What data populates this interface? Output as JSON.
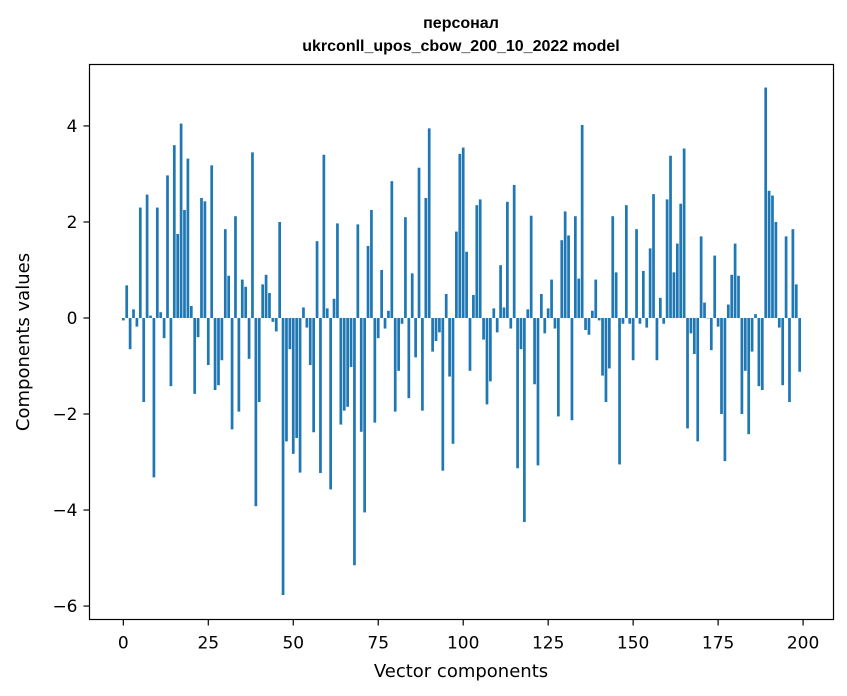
{
  "chart_data": {
    "type": "bar",
    "title": "персонал",
    "subtitle": "ukrconll_upos_cbow_200_10_2022 model",
    "xlabel": "Vector components",
    "ylabel": "Components values",
    "xlim": [
      -9.95,
      208.95
    ],
    "ylim": [
      -6.28,
      5.28
    ],
    "xticks": [
      0,
      25,
      50,
      75,
      100,
      125,
      150,
      175,
      200
    ],
    "yticks": [
      -6,
      -4,
      -2,
      0,
      2,
      4
    ],
    "xtick_labels": [
      "0",
      "25",
      "50",
      "75",
      "100",
      "125",
      "150",
      "175",
      "200"
    ],
    "ytick_labels": [
      "−6",
      "−4",
      "−2",
      "0",
      "2",
      "4"
    ],
    "bar_color": "#1f77b4",
    "grid": false,
    "x": [
      0,
      1,
      2,
      3,
      4,
      5,
      6,
      7,
      8,
      9,
      10,
      11,
      12,
      13,
      14,
      15,
      16,
      17,
      18,
      19,
      20,
      21,
      22,
      23,
      24,
      25,
      26,
      27,
      28,
      29,
      30,
      31,
      32,
      33,
      34,
      35,
      36,
      37,
      38,
      39,
      40,
      41,
      42,
      43,
      44,
      45,
      46,
      47,
      48,
      49,
      50,
      51,
      52,
      53,
      54,
      55,
      56,
      57,
      58,
      59,
      60,
      61,
      62,
      63,
      64,
      65,
      66,
      67,
      68,
      69,
      70,
      71,
      72,
      73,
      74,
      75,
      76,
      77,
      78,
      79,
      80,
      81,
      82,
      83,
      84,
      85,
      86,
      87,
      88,
      89,
      90,
      91,
      92,
      93,
      94,
      95,
      96,
      97,
      98,
      99,
      100,
      101,
      102,
      103,
      104,
      105,
      106,
      107,
      108,
      109,
      110,
      111,
      112,
      113,
      114,
      115,
      116,
      117,
      118,
      119,
      120,
      121,
      122,
      123,
      124,
      125,
      126,
      127,
      128,
      129,
      130,
      131,
      132,
      133,
      134,
      135,
      136,
      137,
      138,
      139,
      140,
      141,
      142,
      143,
      144,
      145,
      146,
      147,
      148,
      149,
      150,
      151,
      152,
      153,
      154,
      155,
      156,
      157,
      158,
      159,
      160,
      161,
      162,
      163,
      164,
      165,
      166,
      167,
      168,
      169,
      170,
      171,
      172,
      173,
      174,
      175,
      176,
      177,
      178,
      179,
      180,
      181,
      182,
      183,
      184,
      185,
      186,
      187,
      188,
      189,
      190,
      191,
      192,
      193,
      194,
      195,
      196,
      197,
      198,
      199
    ],
    "values": [
      -0.05,
      0.68,
      -0.65,
      0.18,
      -0.18,
      2.3,
      -1.75,
      2.57,
      0.05,
      -3.32,
      2.3,
      0.12,
      -0.42,
      2.97,
      -1.42,
      3.6,
      1.75,
      4.05,
      2.25,
      3.32,
      0.25,
      -1.58,
      -0.4,
      2.5,
      2.43,
      -0.98,
      3.18,
      -1.5,
      -1.4,
      -0.88,
      1.85,
      0.88,
      -2.32,
      2.12,
      -1.95,
      0.8,
      0.65,
      -0.85,
      3.45,
      -3.92,
      -1.75,
      0.7,
      0.9,
      0.52,
      -0.08,
      -0.28,
      2.0,
      -5.77,
      -2.57,
      -0.65,
      -2.83,
      -2.5,
      -3.22,
      0.22,
      -0.2,
      -0.98,
      -2.38,
      1.6,
      -3.23,
      3.4,
      0.2,
      -3.57,
      0.4,
      1.97,
      -2.22,
      -1.93,
      -1.85,
      -1.02,
      -5.15,
      1.95,
      -2.37,
      -4.05,
      1.5,
      2.25,
      -2.18,
      -0.42,
      1.0,
      -0.22,
      0.15,
      2.85,
      -1.95,
      -1.1,
      -0.12,
      2.1,
      -1.67,
      0.93,
      -0.82,
      3.13,
      -1.93,
      2.5,
      3.95,
      -0.7,
      -0.48,
      -0.3,
      -3.18,
      0.5,
      -1.22,
      -2.62,
      1.8,
      3.42,
      3.55,
      1.38,
      -1.1,
      0.48,
      2.35,
      2.47,
      -0.45,
      -1.8,
      -1.32,
      0.2,
      -0.3,
      1.1,
      0.22,
      2.42,
      -0.22,
      2.77,
      -3.13,
      -0.65,
      -4.25,
      0.18,
      2.13,
      -1.38,
      -3.07,
      0.5,
      -0.32,
      0.2,
      0.8,
      -0.22,
      -2.05,
      1.62,
      2.22,
      1.72,
      -2.13,
      2.12,
      0.82,
      4.02,
      -0.25,
      -0.35,
      0.15,
      0.8,
      -0.05,
      -1.2,
      -1.75,
      -1.05,
      2.12,
      0.95,
      -3.05,
      -0.12,
      2.35,
      -0.12,
      -0.88,
      1.85,
      -0.12,
      0.98,
      -0.2,
      1.45,
      2.58,
      -0.88,
      0.42,
      -0.12,
      2.47,
      3.38,
      0.95,
      1.55,
      2.38,
      3.53,
      -2.3,
      -0.32,
      -0.75,
      -2.57,
      1.7,
      0.32,
      0.0,
      -0.67,
      1.3,
      -0.18,
      -2.0,
      -2.98,
      0.28,
      0.9,
      1.55,
      0.88,
      -2.0,
      -1.1,
      -2.42,
      -0.7,
      0.08,
      -1.42,
      -1.5,
      4.8,
      2.65,
      2.55,
      2.0,
      -0.2,
      -1.4,
      1.7,
      -1.75,
      1.85,
      0.7,
      -1.12
    ]
  }
}
